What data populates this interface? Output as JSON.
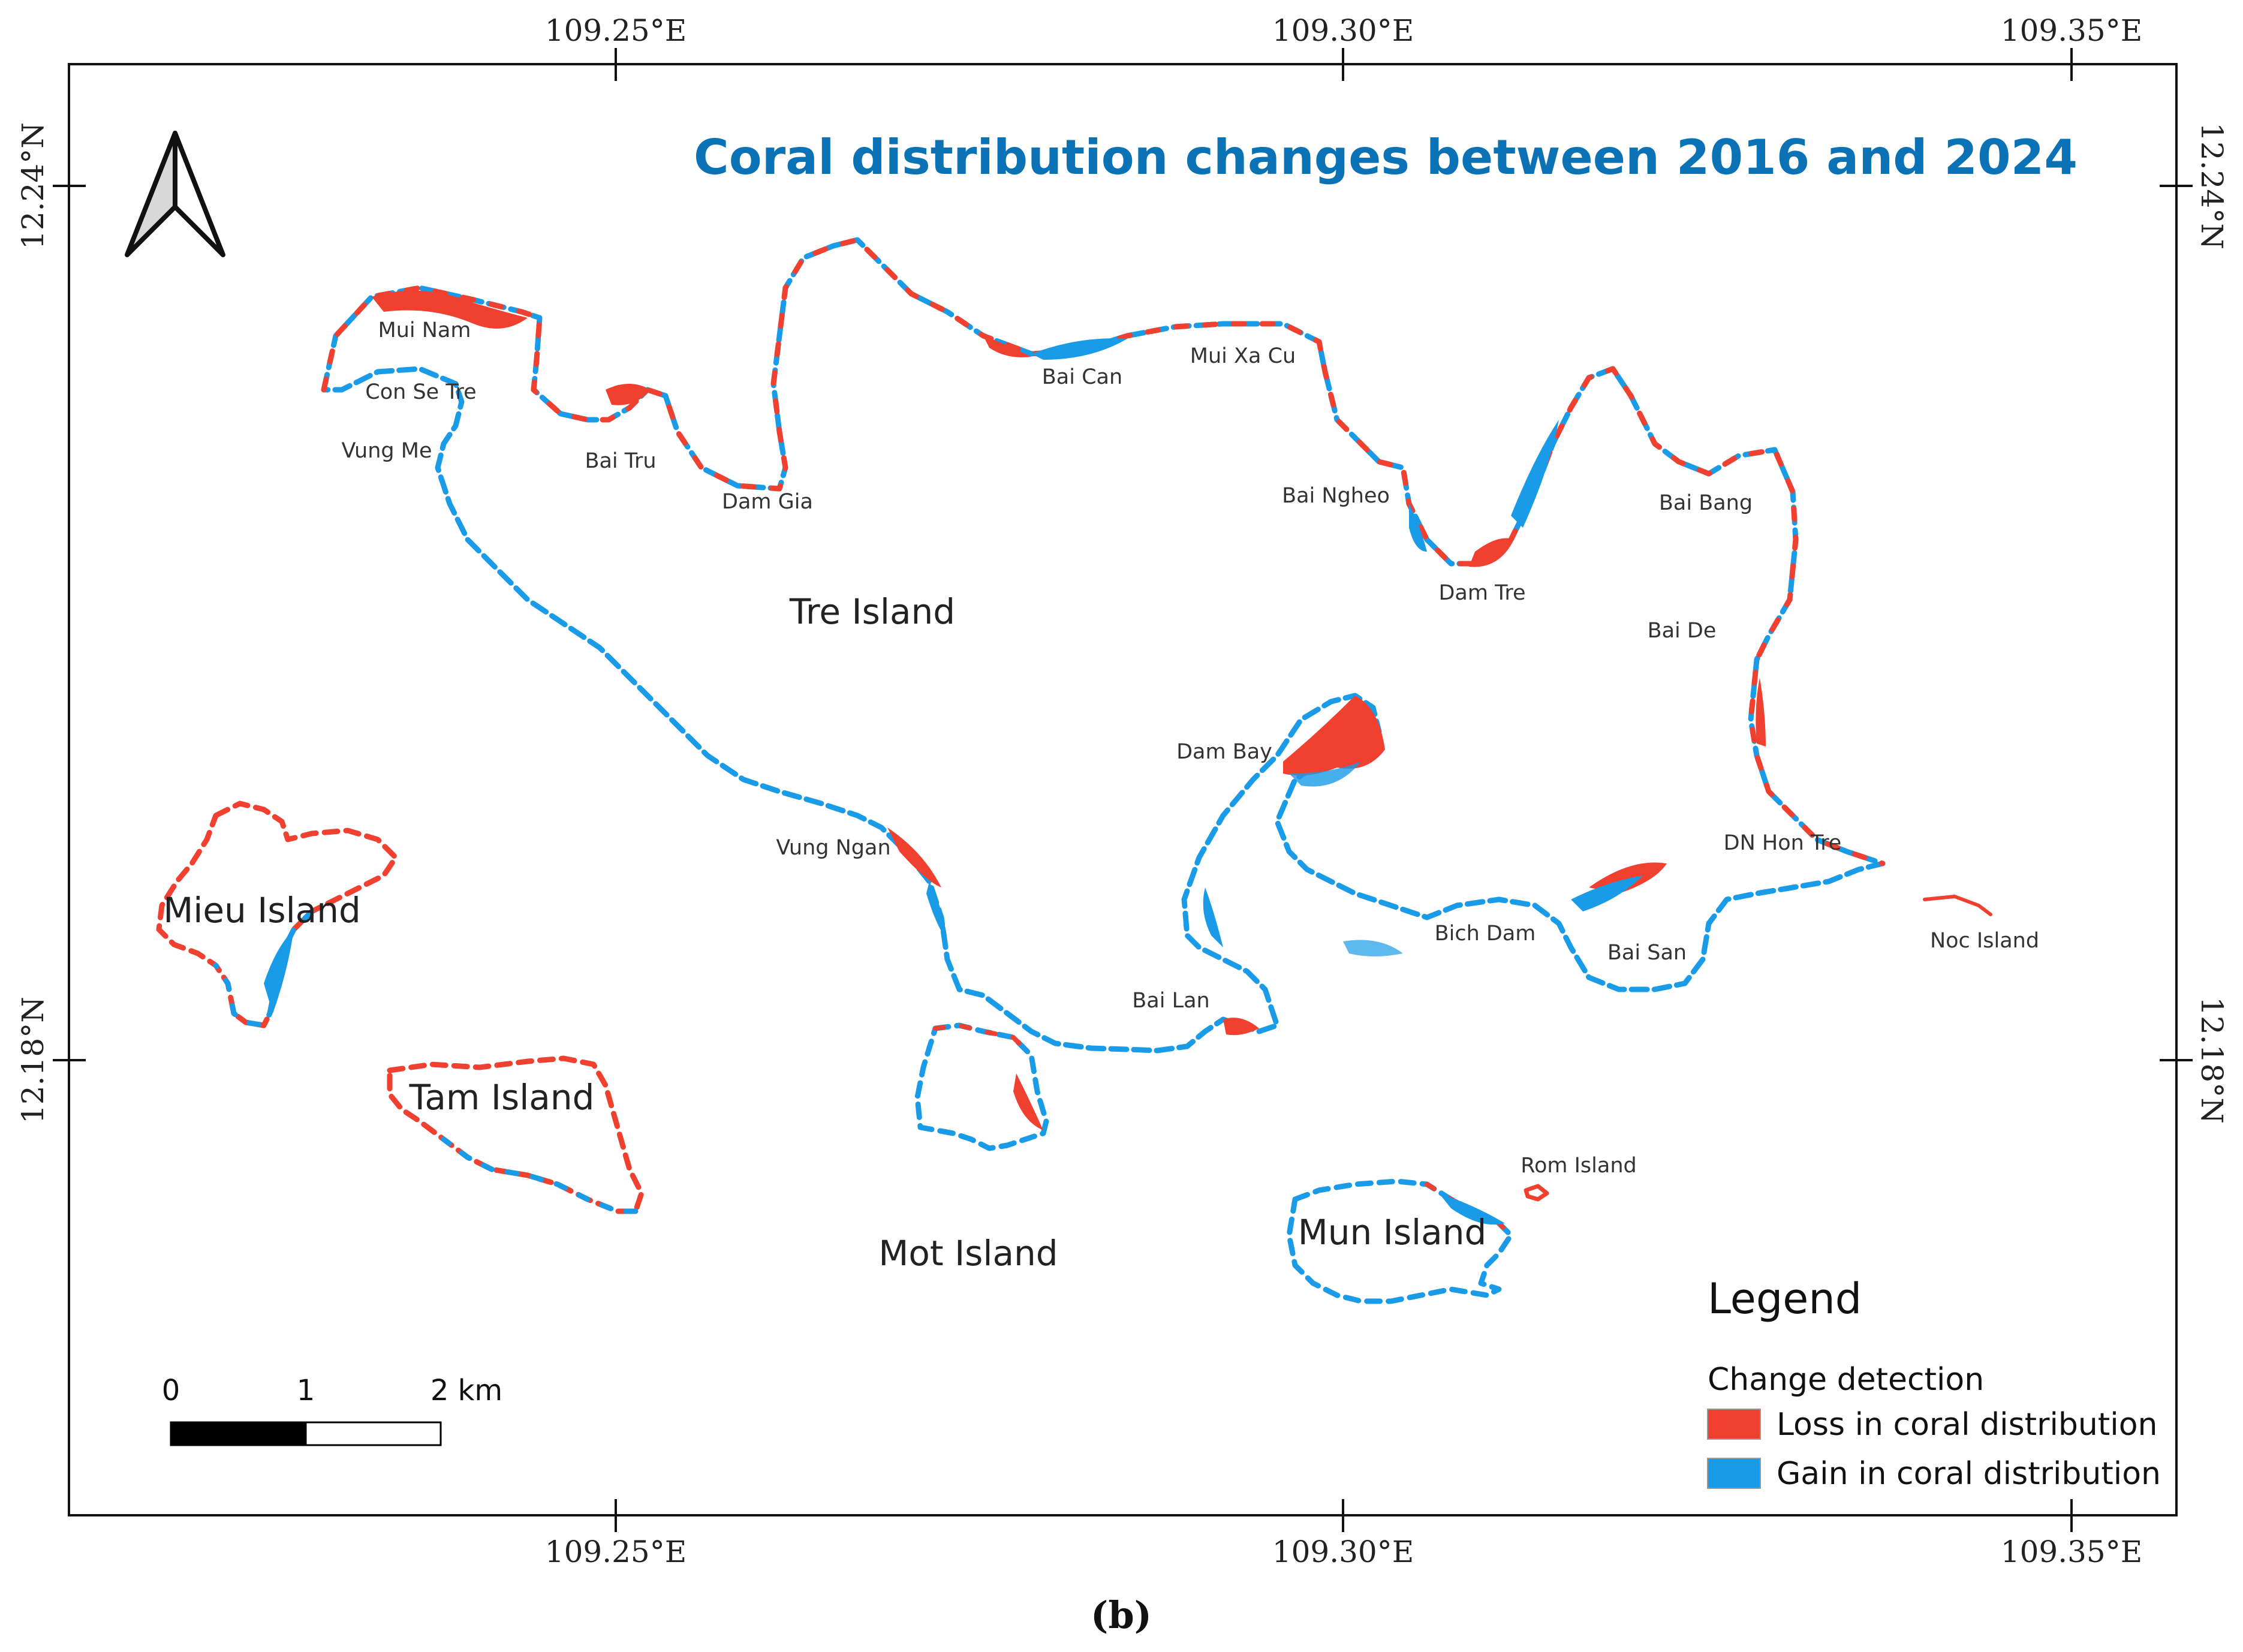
{
  "title": "Coral distribution changes between 2016 and 2024",
  "colors": {
    "loss": "#f04030",
    "gain": "#1a9be8",
    "title": "#0a72b5",
    "frame": "#111111"
  },
  "axes": {
    "top_labels": [
      "109.25°E",
      "109.30°E",
      "109.35°E"
    ],
    "bottom_labels": [
      "109.25°E",
      "109.30°E",
      "109.35°E"
    ],
    "left_labels": [
      "12.24°N",
      "12.18°N"
    ],
    "right_labels": [
      "12.24°N",
      "12.18°N"
    ]
  },
  "north_arrow": {
    "icon": "north-arrow-icon"
  },
  "places": {
    "mui_nam": "Mui Nam",
    "con_se_tre": "Con Se Tre",
    "vung_me": "Vung Me",
    "bai_tru": "Bai Tru",
    "dam_gia": "Dam Gia",
    "bai_can": "Bai Can",
    "mui_xa_cu": "Mui Xa Cu",
    "bai_ngheo": "Bai Ngheo",
    "bai_bang": "Bai Bang",
    "dam_tre": "Dam Tre",
    "bai_de": "Bai De",
    "tre_island": "Tre Island",
    "dam_bay": "Dam Bay",
    "vung_ngan": "Vung Ngan",
    "dn_hon_tre": "DN Hon Tre",
    "bich_dam": "Bich Dam",
    "bai_san": "Bai San",
    "noc_island": "Noc Island",
    "bai_lan": "Bai Lan",
    "mieu_island": "Mieu Island",
    "tam_island": "Tam Island",
    "mot_island": "Mot Island",
    "rom_island": "Rom Island",
    "mun_island": "Mun Island"
  },
  "legend": {
    "title": "Legend",
    "subtitle": "Change detection",
    "items": [
      {
        "label": "Loss in coral distribution",
        "color": "#f04030"
      },
      {
        "label": "Gain in coral distribution",
        "color": "#1a9be8"
      }
    ]
  },
  "scale_bar": {
    "labels": [
      "0",
      "1",
      "2 km"
    ]
  },
  "caption": "(b)"
}
